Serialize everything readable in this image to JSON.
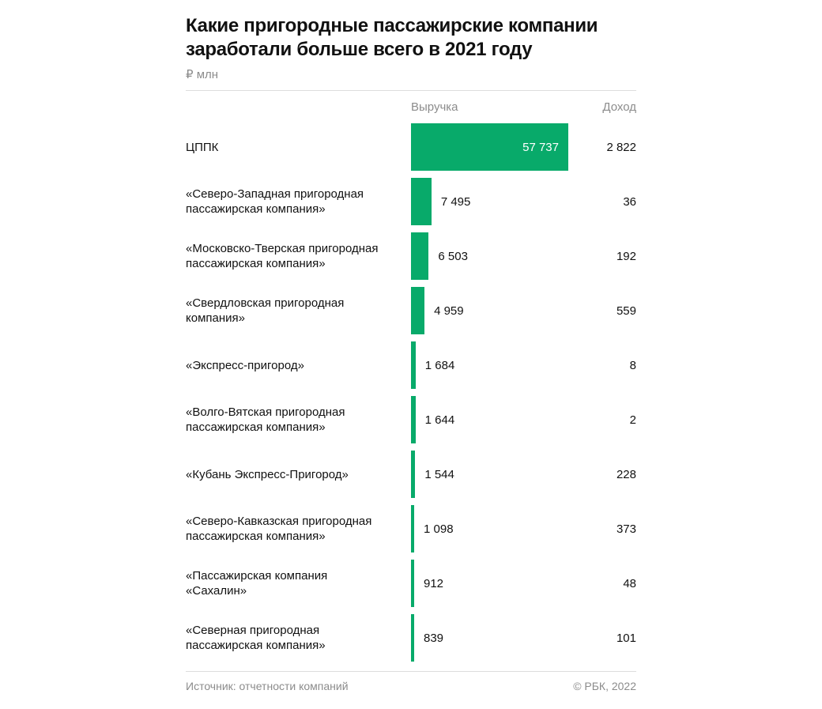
{
  "header": {
    "title_line1": "Какие пригородные пассажирские компании",
    "title_line2": "заработали больше всего в 2021 году",
    "unit": "₽ млн"
  },
  "columns": {
    "revenue": "Выручка",
    "income": "Доход"
  },
  "footer": {
    "source": "Источник: отчетности компаний",
    "credit": "© РБК, 2022"
  },
  "colors": {
    "bar": "#08aa6a"
  },
  "chart_data": {
    "type": "bar",
    "orientation": "horizontal",
    "title": "Какие пригородные пассажирские компании заработали больше всего в 2021 году",
    "unit": "₽ млн",
    "categories": [
      "ЦППК",
      "«Северо-Западная пригородная пассажирская компания»",
      "«Московско-Тверская пригородная пассажирская компания»",
      "«Свердловская пригородная компания»",
      "«Экспресс-пригород»",
      "«Волго-Вятская пригородная пассажирская компания»",
      "«Кубань Экспресс-Пригород»",
      "«Северо-Кавказская пригородная пассажирская компания»",
      "«Пассажирская компания «Сахалин»",
      "«Северная пригородная пассажирская компания»"
    ],
    "series": [
      {
        "name": "Выручка",
        "values": [
          57737,
          7495,
          6503,
          4959,
          1684,
          1644,
          1544,
          1098,
          912,
          839
        ],
        "labels": [
          "57 737",
          "7 495",
          "6 503",
          "4 959",
          "1 684",
          "1 644",
          "1 544",
          "1 098",
          "912",
          "839"
        ]
      },
      {
        "name": "Доход",
        "values": [
          2822,
          36,
          192,
          559,
          8,
          2,
          228,
          373,
          48,
          101
        ],
        "labels": [
          "2 822",
          "36",
          "192",
          "559",
          "8",
          "2",
          "228",
          "373",
          "48",
          "101"
        ]
      }
    ],
    "xlim": [
      0,
      57737
    ]
  }
}
